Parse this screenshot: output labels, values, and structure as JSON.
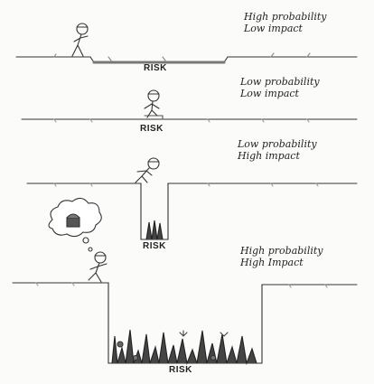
{
  "panels": [
    {
      "caption_line1": "High probability",
      "caption_line2": "Low impact",
      "risk_label": "RISK"
    },
    {
      "caption_line1": "Low probability",
      "caption_line2": "Low impact",
      "risk_label": "RISK"
    },
    {
      "caption_line1": "Low probability",
      "caption_line2": "High impact",
      "risk_label": "RISK"
    },
    {
      "caption_line1": "High probability",
      "caption_line2": "High Impact",
      "risk_label": "RISK"
    }
  ]
}
